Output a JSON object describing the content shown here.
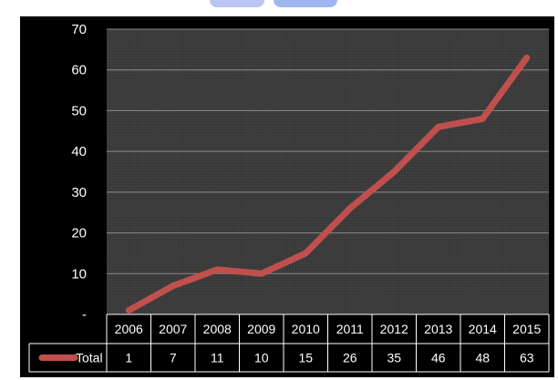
{
  "chart_data": {
    "type": "line",
    "title": "",
    "xlabel": "",
    "ylabel": "",
    "categories": [
      "2006",
      "2007",
      "2008",
      "2009",
      "2010",
      "2011",
      "2012",
      "2013",
      "2014",
      "2015"
    ],
    "series": [
      {
        "name": "Total",
        "values": [
          1,
          7,
          11,
          10,
          15,
          26,
          35,
          46,
          48,
          63
        ],
        "color": "#c0504d"
      }
    ],
    "ylim": [
      0,
      70
    ],
    "yticks": [
      0,
      10,
      20,
      30,
      40,
      50,
      60,
      70
    ],
    "ytick_labels": [
      "-",
      "10",
      "20",
      "30",
      "40",
      "50",
      "60",
      "70"
    ],
    "grid": true,
    "data_table": true,
    "plot_background": "#3a3a3a",
    "background": "#000000"
  }
}
